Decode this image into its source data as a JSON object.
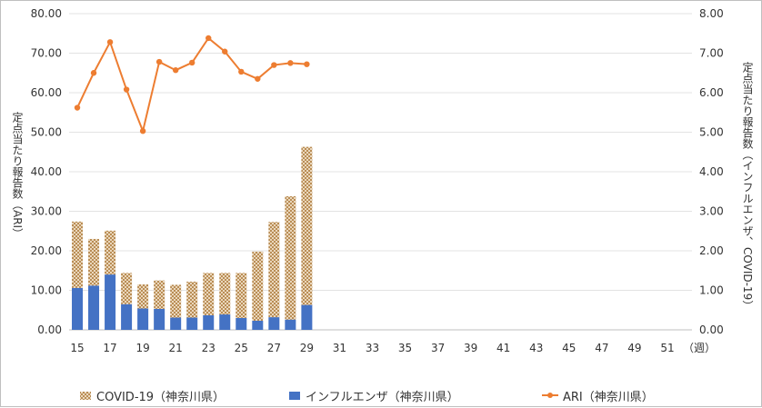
{
  "chart_data": {
    "type": "bar+line",
    "x_ticks": [
      "15",
      "17",
      "19",
      "21",
      "23",
      "25",
      "27",
      "29",
      "31",
      "33",
      "35",
      "37",
      "39",
      "41",
      "43",
      "45",
      "47",
      "49",
      "51"
    ],
    "x_unit": "（週）",
    "weeks": [
      15,
      16,
      17,
      18,
      19,
      20,
      21,
      22,
      23,
      24,
      25,
      26,
      27,
      28,
      29
    ],
    "x_range": [
      15,
      52
    ],
    "left_axis": {
      "label": "定点当たり報告数（ARI）",
      "ylim": [
        0,
        80
      ],
      "ticks": [
        "0.00",
        "10.00",
        "20.00",
        "30.00",
        "40.00",
        "50.00",
        "60.00",
        "70.00",
        "80.00"
      ]
    },
    "right_axis": {
      "label": "定点当たり報告数（インフルエンザ、COVID-19）",
      "ylim": [
        0,
        8
      ],
      "ticks": [
        "0.00",
        "1.00",
        "2.00",
        "3.00",
        "4.00",
        "5.00",
        "6.00",
        "7.00",
        "8.00"
      ]
    },
    "series": [
      {
        "name": "COVID-19（神奈川県）",
        "kind": "stacked-bar",
        "axis": "right",
        "color": "#c8a06c",
        "values": [
          1.68,
          1.18,
          1.11,
          0.79,
          0.61,
          0.72,
          0.83,
          0.91,
          1.07,
          1.05,
          1.14,
          1.75,
          2.41,
          3.12,
          4.0
        ]
      },
      {
        "name": "インフルエンザ（神奈川県）",
        "kind": "stacked-bar",
        "axis": "right",
        "color": "#4472c4",
        "values": [
          1.06,
          1.12,
          1.4,
          0.65,
          0.54,
          0.53,
          0.31,
          0.31,
          0.37,
          0.39,
          0.3,
          0.23,
          0.32,
          0.26,
          0.63
        ]
      },
      {
        "name": "ARI（神奈川県）",
        "kind": "line",
        "axis": "left",
        "color": "#ed7d31",
        "values": [
          56.2,
          65.0,
          72.8,
          60.8,
          50.3,
          67.8,
          65.7,
          67.6,
          73.8,
          70.4,
          65.3,
          63.5,
          67.0,
          67.5,
          67.2
        ]
      }
    ],
    "grid": true,
    "legend_position": "bottom"
  }
}
